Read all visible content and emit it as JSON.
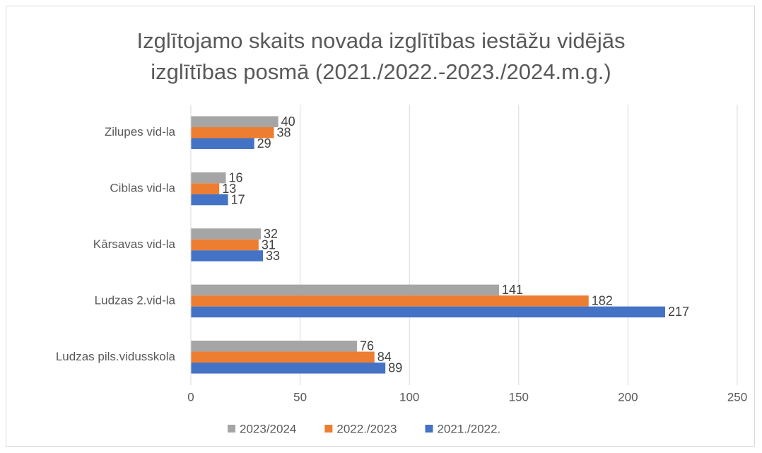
{
  "chart_data": {
    "type": "bar",
    "orientation": "horizontal",
    "title": "Izglītojamo skaits novada izglītības iestāžu vidējās izglītības posmā (2021./2022.-2023./2024.m.g.)",
    "categories": [
      "Ludzas pils.vidusskola",
      "Ludzas 2.vid-la",
      "Kārsavas vid-la",
      "Ciblas vid-la",
      "Zilupes vid-la"
    ],
    "series": [
      {
        "name": "2023/2024",
        "color": "#a5a5a5",
        "values": [
          76,
          141,
          32,
          16,
          40
        ]
      },
      {
        "name": "2022./2023",
        "color": "#ed7d31",
        "values": [
          84,
          182,
          31,
          13,
          38
        ]
      },
      {
        "name": "2021./2022.",
        "color": "#4472c4",
        "values": [
          89,
          217,
          33,
          17,
          29
        ]
      }
    ],
    "xlim": [
      0,
      250
    ],
    "xticks": [
      0,
      50,
      100,
      150,
      200,
      250
    ],
    "grid": true,
    "legend": "bottom"
  }
}
